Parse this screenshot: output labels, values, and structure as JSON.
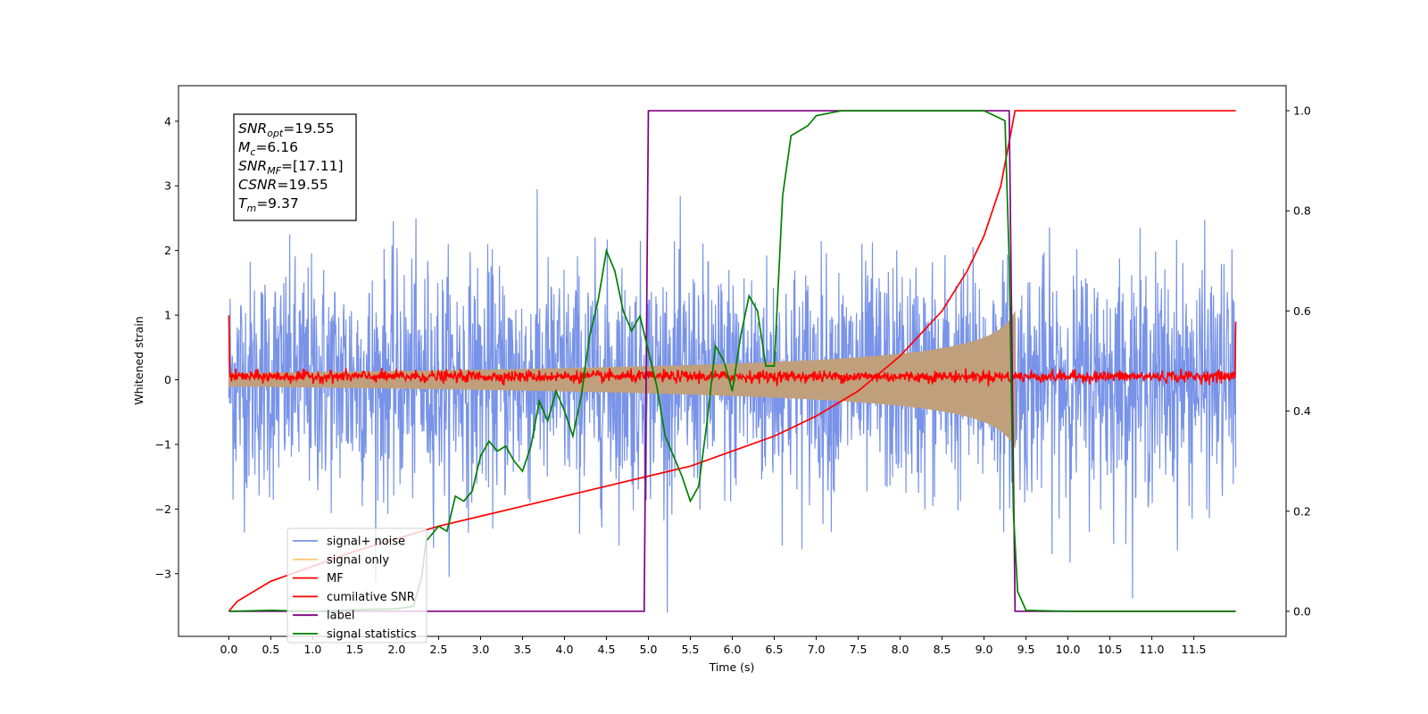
{
  "chart_data": {
    "type": "line",
    "xlabel": "Time (s)",
    "ylabel": "Whitened strain",
    "xlim": [
      -0.6,
      12.6
    ],
    "ylim": [
      -3.97,
      4.55
    ],
    "y2lim": [
      -0.05,
      1.05
    ],
    "x_ticks": [
      "0.0",
      "0.5",
      "1.0",
      "1.5",
      "2.0",
      "2.5",
      "3.0",
      "3.5",
      "4.0",
      "4.5",
      "5.0",
      "5.5",
      "6.0",
      "6.5",
      "7.0",
      "7.5",
      "8.0",
      "8.5",
      "9.0",
      "9.5",
      "10.0",
      "10.5",
      "11.0",
      "11.5"
    ],
    "y_ticks": [
      "-3",
      "-2",
      "-1",
      "0",
      "1",
      "2",
      "3",
      "4"
    ],
    "y2_ticks": [
      "0.0",
      "0.2",
      "0.4",
      "0.6",
      "0.8",
      "1.0"
    ],
    "annotation": [
      {
        "sym": "SNR",
        "sub": "opt",
        "text": "=19.55"
      },
      {
        "sym": "M",
        "sub": "c",
        "text": "=6.16"
      },
      {
        "sym": "SNR",
        "sub": "MF",
        "text": "=[17.11]"
      },
      {
        "sym": "CSNR",
        "sub": "",
        "text": "=19.55"
      },
      {
        "sym": "T",
        "sub": "m",
        "text": "=9.37"
      }
    ],
    "legend_position": "lower-left",
    "series": [
      {
        "name": "signal+ noise",
        "color": "#7893e8",
        "axis": "left",
        "noise_sigma": 0.9,
        "t_start": 0.0,
        "t_end": 12.0
      },
      {
        "name": "signal only",
        "color": "#c0a07c",
        "axis": "left",
        "merger_time": 9.37,
        "amp_start": 0.1,
        "amp_end": 1.05
      },
      {
        "name": "MF",
        "color": "#ff0000",
        "axis": "left",
        "baseline": 0.05,
        "edge_values": [
          1.0,
          0.9
        ]
      },
      {
        "name": "cumilative SNR",
        "color": "#ff0000",
        "axis": "right",
        "x": [
          0.0,
          0.1,
          0.5,
          1.0,
          1.5,
          2.0,
          2.5,
          3.0,
          3.5,
          4.0,
          4.5,
          5.0,
          5.5,
          6.0,
          6.5,
          7.0,
          7.5,
          8.0,
          8.5,
          8.8,
          9.0,
          9.2,
          9.37,
          9.5,
          10.0,
          11.0,
          12.0
        ],
        "y": [
          0.0,
          0.02,
          0.06,
          0.09,
          0.12,
          0.145,
          0.17,
          0.19,
          0.21,
          0.23,
          0.25,
          0.27,
          0.29,
          0.32,
          0.35,
          0.39,
          0.44,
          0.51,
          0.6,
          0.68,
          0.75,
          0.85,
          1.0,
          1.0,
          1.0,
          1.0,
          1.0
        ]
      },
      {
        "name": "label",
        "color": "#800080",
        "axis": "right",
        "x": [
          0.0,
          4.95,
          5.0,
          9.3,
          9.37,
          12.0
        ],
        "y": [
          0.0,
          0.0,
          1.0,
          1.0,
          0.0,
          0.0
        ]
      },
      {
        "name": "signal statistics",
        "color": "#008000",
        "axis": "right",
        "x": [
          0.0,
          0.5,
          1.0,
          1.5,
          2.0,
          2.2,
          2.3,
          2.35,
          2.5,
          2.6,
          2.7,
          2.8,
          2.9,
          3.0,
          3.1,
          3.2,
          3.3,
          3.4,
          3.5,
          3.6,
          3.7,
          3.8,
          3.9,
          4.0,
          4.1,
          4.2,
          4.3,
          4.4,
          4.5,
          4.6,
          4.7,
          4.8,
          4.9,
          5.0,
          5.1,
          5.2,
          5.3,
          5.4,
          5.5,
          5.6,
          5.7,
          5.8,
          5.9,
          6.0,
          6.1,
          6.2,
          6.3,
          6.4,
          6.5,
          6.6,
          6.7,
          6.8,
          6.9,
          7.0,
          7.3,
          8.0,
          9.0,
          9.25,
          9.3,
          9.35,
          9.4,
          9.5,
          10.0,
          11.0,
          12.0
        ],
        "y": [
          0.0,
          0.002,
          0.0,
          0.003,
          0.005,
          0.01,
          0.07,
          0.14,
          0.17,
          0.16,
          0.23,
          0.22,
          0.24,
          0.31,
          0.34,
          0.32,
          0.33,
          0.3,
          0.28,
          0.33,
          0.42,
          0.38,
          0.44,
          0.4,
          0.35,
          0.43,
          0.55,
          0.62,
          0.72,
          0.68,
          0.6,
          0.56,
          0.59,
          0.52,
          0.45,
          0.35,
          0.31,
          0.27,
          0.22,
          0.25,
          0.38,
          0.53,
          0.5,
          0.44,
          0.55,
          0.63,
          0.6,
          0.49,
          0.49,
          0.83,
          0.95,
          0.96,
          0.97,
          0.99,
          1.0,
          1.0,
          1.0,
          0.98,
          0.7,
          0.2,
          0.04,
          0.002,
          0.0,
          0.0,
          0.0
        ]
      }
    ]
  }
}
